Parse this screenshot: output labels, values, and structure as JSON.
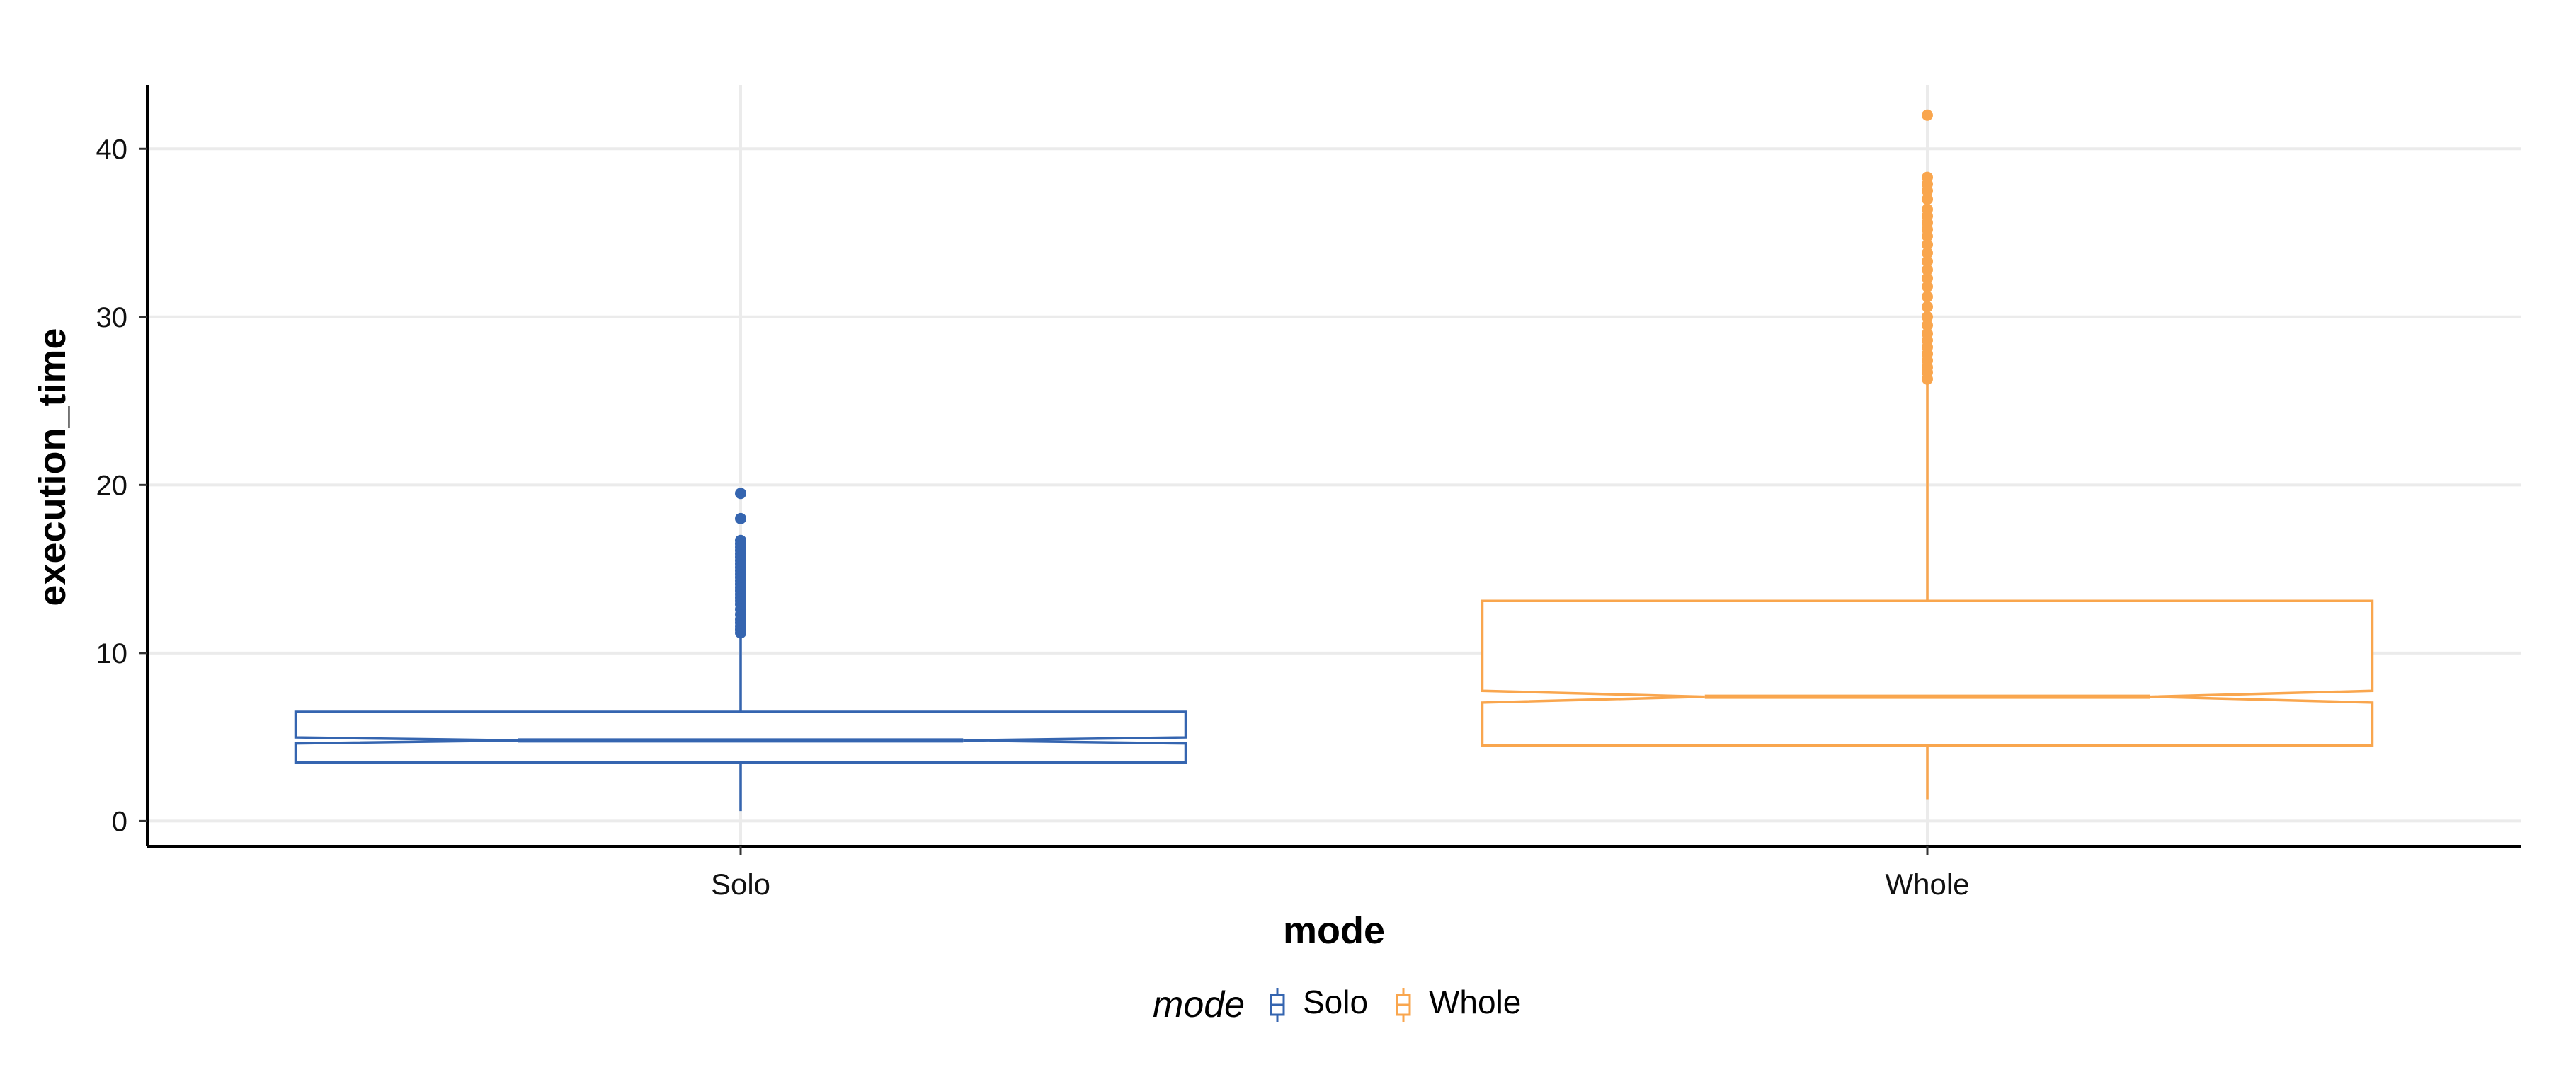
{
  "chart_data": {
    "type": "boxplot",
    "notched": true,
    "xlabel": "mode",
    "ylabel": "execution_time",
    "categories": [
      "Solo",
      "Whole"
    ],
    "ylim": [
      -1.5,
      43.8
    ],
    "yticks": [
      0,
      10,
      20,
      30,
      40
    ],
    "grid": true,
    "legend": {
      "title": "mode",
      "position": "bottom",
      "entries": [
        "Solo",
        "Whole"
      ]
    },
    "colors": {
      "Solo": "#3565b0",
      "Whole": "#f9a64e",
      "grid": "#ebebeb",
      "axis": "#000000"
    },
    "series": [
      {
        "name": "Solo",
        "box": {
          "whisker_low": 0.6,
          "q1": 3.5,
          "median": 4.8,
          "q3": 6.5,
          "whisker_high": 11.0,
          "notch_low": 4.62,
          "notch_high": 4.98
        },
        "outliers": [
          11.2,
          11.4,
          11.6,
          11.8,
          12.0,
          12.3,
          12.6,
          12.9,
          13.1,
          13.3,
          13.5,
          13.7,
          13.9,
          14.1,
          14.3,
          14.5,
          14.7,
          14.9,
          15.1,
          15.3,
          15.5,
          15.7,
          15.9,
          16.1,
          16.3,
          16.5,
          16.7,
          18.0,
          19.5
        ]
      },
      {
        "name": "Whole",
        "box": {
          "whisker_low": 1.3,
          "q1": 4.5,
          "median": 7.4,
          "q3": 13.1,
          "whisker_high": 26.0,
          "notch_low": 7.05,
          "notch_high": 7.75
        },
        "outliers": [
          26.3,
          26.7,
          27.0,
          27.4,
          27.8,
          28.2,
          28.6,
          29.0,
          29.5,
          30.0,
          30.6,
          31.2,
          31.8,
          32.3,
          32.8,
          33.3,
          33.8,
          34.3,
          34.8,
          35.2,
          35.6,
          36.0,
          36.4,
          37.0,
          37.5,
          37.9,
          38.3,
          42.0
        ]
      }
    ]
  }
}
